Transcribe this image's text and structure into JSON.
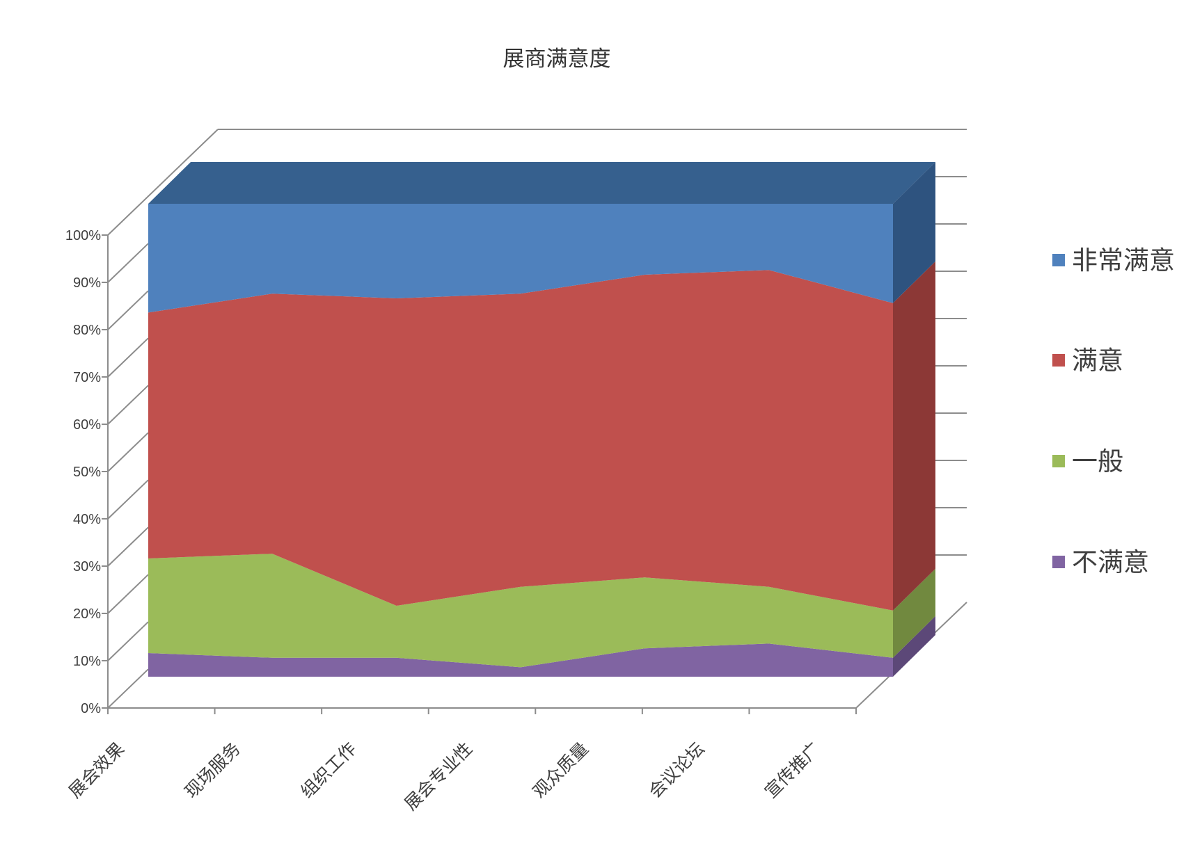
{
  "title": "展商满意度",
  "chart_data": {
    "type": "area",
    "variant": "3d-100pct-stacked-area",
    "title": "展商满意度",
    "categories": [
      "展会效果",
      "现场服务",
      "组织工作",
      "展会专业性",
      "观众质量",
      "会议论坛",
      "宣传推广"
    ],
    "series": [
      {
        "name": "不满意",
        "slug": "dissatisfied",
        "color": "#8064A2",
        "side_color": "#5C4878",
        "values": [
          5,
          4,
          4,
          2,
          6,
          7,
          4
        ]
      },
      {
        "name": "一般",
        "slug": "neutral",
        "color": "#9BBB59",
        "side_color": "#71893F",
        "values": [
          20,
          22,
          11,
          17,
          15,
          12,
          10
        ]
      },
      {
        "name": "满意",
        "slug": "satisfied",
        "color": "#C0504D",
        "side_color": "#8C3836",
        "values": [
          52,
          55,
          65,
          62,
          64,
          67,
          65
        ]
      },
      {
        "name": "非常满意",
        "slug": "very-satisfied",
        "color": "#4F81BD",
        "side_color": "#2E537F",
        "top_color": "#36608E",
        "values": [
          23,
          19,
          20,
          19,
          15,
          14,
          21
        ]
      }
    ],
    "y_axis": {
      "min": 0,
      "max": 100,
      "step": 10,
      "tick_labels": [
        "0%",
        "10%",
        "20%",
        "30%",
        "40%",
        "50%",
        "60%",
        "70%",
        "80%",
        "90%",
        "100%"
      ]
    },
    "legend": {
      "position": "right",
      "entries": [
        "非常满意",
        "满意",
        "一般",
        "不满意"
      ]
    },
    "grid": true,
    "gridline_color": "#8C8C8C",
    "text_color": "#3f3f3f"
  }
}
